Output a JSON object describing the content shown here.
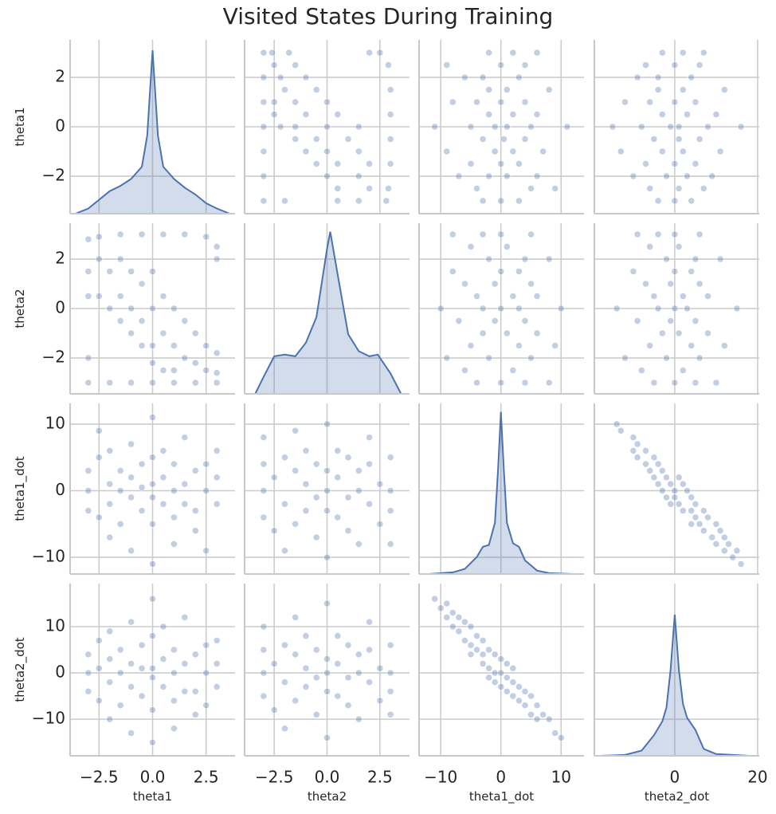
{
  "chart_data": {
    "type": "pairplot",
    "title": "Visited States During Training",
    "color": "#4c72b0",
    "grid": true,
    "variables": [
      "theta1",
      "theta2",
      "theta1_dot",
      "theta2_dot"
    ],
    "xlims": [
      [
        -3.85,
        3.85
      ],
      [
        -3.9,
        3.9
      ],
      [
        -13.6,
        13.8
      ],
      [
        -19.4,
        20.4
      ]
    ],
    "xticks": [
      [
        {
          "value": -2.5,
          "label": "−2.5"
        },
        {
          "value": 0,
          "label": "0.0"
        },
        2.5
      ],
      [
        {
          "value": -2.5,
          "label": "−2.5"
        },
        {
          "value": 0,
          "label": "0.0"
        },
        2.5
      ],
      [
        {
          "value": -10,
          "label": "−10"
        },
        0,
        10
      ],
      [
        0,
        20
      ]
    ],
    "ylims": [
      [
        -3.52,
        3.52
      ],
      [
        -3.45,
        3.45
      ],
      [
        -12.5,
        13.1
      ],
      [
        -17.9,
        19.3
      ]
    ],
    "yticks": [
      [
        {
          "value": -2,
          "label": "−2"
        },
        0,
        2
      ],
      [
        {
          "value": -2,
          "label": "−2"
        },
        0,
        2
      ],
      [
        {
          "value": -10,
          "label": "−10"
        },
        0,
        10
      ],
      [
        {
          "value": -10,
          "label": "−10"
        },
        0,
        10
      ]
    ],
    "density_ylim": [
      0,
      1
    ],
    "diagonal": [
      {
        "x": [
          -3.6,
          -3.0,
          -2.5,
          -2.0,
          -1.5,
          -1.0,
          -0.5,
          -0.25,
          0,
          0.25,
          0.5,
          1.0,
          1.5,
          2.0,
          2.5,
          3.0,
          3.6
        ],
        "density": [
          0.0,
          0.03,
          0.08,
          0.13,
          0.16,
          0.2,
          0.27,
          0.45,
          0.94,
          0.45,
          0.27,
          0.2,
          0.15,
          0.11,
          0.06,
          0.03,
          0.0
        ]
      },
      {
        "x": [
          -3.4,
          -3.0,
          -2.5,
          -2.0,
          -1.5,
          -1.0,
          -0.5,
          0,
          0.15,
          0.5,
          1.0,
          1.5,
          2.0,
          2.4,
          3.0,
          3.5
        ],
        "density": [
          0.0,
          0.1,
          0.22,
          0.23,
          0.22,
          0.3,
          0.45,
          0.85,
          0.95,
          0.7,
          0.35,
          0.25,
          0.22,
          0.23,
          0.12,
          0.0
        ]
      },
      {
        "x": [
          -12,
          -8,
          -6,
          -4,
          -3,
          -2,
          -1,
          -0.5,
          0,
          0.5,
          1,
          2,
          3,
          4,
          6,
          8,
          12
        ],
        "density": [
          0.0,
          0.01,
          0.03,
          0.1,
          0.16,
          0.17,
          0.3,
          0.6,
          0.95,
          0.6,
          0.3,
          0.18,
          0.16,
          0.08,
          0.02,
          0.005,
          0.0
        ]
      },
      {
        "x": [
          -18,
          -12,
          -8,
          -5,
          -3,
          -2,
          -1,
          0,
          1,
          2,
          3,
          5,
          7,
          10,
          18
        ],
        "density": [
          0.0,
          0.005,
          0.03,
          0.12,
          0.2,
          0.28,
          0.5,
          0.82,
          0.5,
          0.3,
          0.22,
          0.15,
          0.04,
          0.01,
          0.0
        ]
      }
    ],
    "pairs": [
      {
        "x": [
          -3,
          -2.5,
          -1.5,
          -0.5,
          0.5,
          1.5,
          2.5,
          3,
          3.0,
          -3,
          -2,
          -1,
          0,
          1,
          2,
          3,
          -3,
          -3,
          -3,
          -2.5,
          -2.5,
          -2,
          -2,
          -1.5,
          -1.5,
          -1.5,
          -1,
          -1,
          -1,
          -0.5,
          -0.5,
          -0.5,
          0,
          0,
          0,
          0,
          0.5,
          0.5,
          0.5,
          1,
          1,
          1,
          1.5,
          1.5,
          2,
          2,
          2.5,
          2.5,
          3,
          3
        ],
        "y": [
          2.8,
          2.9,
          3.0,
          3.0,
          3.0,
          3.0,
          2.9,
          2.5,
          2.0,
          -3,
          -3.0,
          -3.0,
          -3,
          -3,
          -3,
          -3,
          1.5,
          0.5,
          -2,
          2,
          0.5,
          1.5,
          0,
          2,
          0.5,
          -0.5,
          1.5,
          0,
          -1,
          1,
          -0.5,
          -1.5,
          1.5,
          0,
          -1.5,
          -2.2,
          0.5,
          -1,
          -2.5,
          0,
          -1.5,
          -2.5,
          -0.5,
          -2,
          -1,
          -2.2,
          -1.5,
          -2.5,
          -1.8,
          -2.6
        ]
      },
      {
        "x": [
          -3,
          -3,
          -3,
          -2.5,
          -2.5,
          -2.5,
          -2,
          -2,
          -2,
          -2,
          -1.5,
          -1.5,
          -1.5,
          -1,
          -1,
          -1,
          -1,
          -0.5,
          -0.5,
          -0.5,
          0,
          0,
          0,
          0,
          0,
          0,
          0.5,
          0.5,
          0.5,
          1,
          1,
          1,
          1,
          1.5,
          1.5,
          1.5,
          2,
          2,
          2,
          2.5,
          2.5,
          2.5,
          3,
          3,
          3
        ],
        "y": [
          0,
          3,
          -3,
          5,
          -4,
          9,
          1,
          -2,
          6,
          -7,
          3,
          -5,
          0,
          2,
          -1,
          7,
          -9,
          4,
          -3,
          0.5,
          1,
          -1,
          5,
          -5,
          11,
          -11,
          2,
          -2,
          6,
          0,
          -4,
          4,
          -8,
          1,
          -2,
          8,
          3,
          -3,
          -6,
          0,
          4,
          -9,
          2,
          -2,
          6
        ]
      },
      {
        "x": [
          -3,
          -3,
          -3,
          -2.5,
          -2.5,
          -2.5,
          -2,
          -2,
          -2,
          -2,
          -1.5,
          -1.5,
          -1.5,
          -1,
          -1,
          -1,
          -1,
          -0.5,
          -0.5,
          -0.5,
          0,
          0,
          0,
          0,
          0,
          0,
          0.5,
          0.5,
          0.5,
          1,
          1,
          1,
          1,
          1.5,
          1.5,
          1.5,
          2,
          2,
          2,
          2.5,
          2.5,
          2.5,
          3,
          3,
          3
        ],
        "y": [
          0,
          4,
          -4,
          7,
          -6,
          1,
          3,
          -2,
          9,
          -10,
          5,
          -7,
          0,
          2,
          -3,
          11,
          -13,
          6,
          -5,
          1,
          1,
          -1,
          8,
          -8,
          16,
          -15,
          3,
          -3,
          10,
          0,
          -6,
          5,
          -12,
          2,
          -4,
          12,
          4,
          -4,
          -9,
          0,
          6,
          -7,
          2,
          -3,
          7
        ]
      },
      {
        "x": [
          -3,
          -3,
          -3,
          -3,
          -2.5,
          -2.5,
          -2,
          -2,
          -2,
          -1.5,
          -1.5,
          -1.5,
          -1,
          -1,
          -1,
          -0.5,
          -0.5,
          -0.5,
          0,
          0,
          0,
          0,
          0,
          0.5,
          0.5,
          0.5,
          1,
          1,
          1,
          1.5,
          1.5,
          1.5,
          2,
          2,
          2,
          2.5,
          2.5,
          3,
          3,
          3,
          3
        ],
        "y": [
          0,
          4,
          -4,
          8,
          -6,
          2,
          5,
          -2,
          -9,
          3,
          -5,
          9,
          1,
          -3,
          6,
          -1,
          4,
          -7,
          0,
          3,
          -3,
          10,
          -10,
          2,
          -4,
          6,
          -1,
          5,
          -6,
          0,
          3,
          -8,
          4,
          -2,
          8,
          1,
          -5,
          0,
          5,
          -3,
          -8
        ]
      },
      {
        "x": [
          -3,
          -3,
          -3,
          -3,
          -2.5,
          -2.5,
          -2,
          -2,
          -2,
          -1.5,
          -1.5,
          -1.5,
          -1,
          -1,
          -1,
          -0.5,
          -0.5,
          -0.5,
          0,
          0,
          0,
          0,
          0,
          0.5,
          0.5,
          0.5,
          1,
          1,
          1,
          1.5,
          1.5,
          1.5,
          2,
          2,
          2,
          2.5,
          2.5,
          3,
          3,
          3,
          3
        ],
        "y": [
          0,
          5,
          -5,
          10,
          -8,
          2,
          6,
          -2,
          -12,
          4,
          -6,
          12,
          1,
          -3,
          8,
          -1,
          5,
          -9,
          0,
          3,
          -4,
          15,
          -14,
          2,
          -5,
          8,
          -1,
          6,
          -7,
          0,
          4,
          -10,
          5,
          -2,
          11,
          1,
          -6,
          0,
          6,
          -4,
          -9
        ]
      },
      {
        "x": [
          -11,
          -10,
          -9,
          -9,
          -8,
          -8,
          -7,
          -7,
          -6,
          -6,
          -5,
          -5,
          -5,
          -4,
          -4,
          -3,
          -3,
          -3,
          -2,
          -2,
          -2,
          -1,
          -1,
          -1,
          0,
          0,
          0,
          1,
          1,
          1,
          2,
          2,
          2,
          3,
          3,
          4,
          4,
          5,
          5,
          6,
          6,
          7,
          8,
          9,
          10
        ],
        "y": [
          16,
          14,
          12,
          15,
          10,
          13,
          9,
          12,
          7,
          11,
          6,
          10,
          4,
          5,
          8,
          2,
          7,
          4,
          1,
          5,
          -1,
          0,
          4,
          -2,
          0,
          3,
          -3,
          -1,
          2,
          -4,
          -2,
          1,
          -5,
          -3,
          -6,
          -4,
          -7,
          -5,
          -9,
          -7,
          -10,
          -9,
          -10,
          -13,
          -14
        ]
      }
    ]
  }
}
